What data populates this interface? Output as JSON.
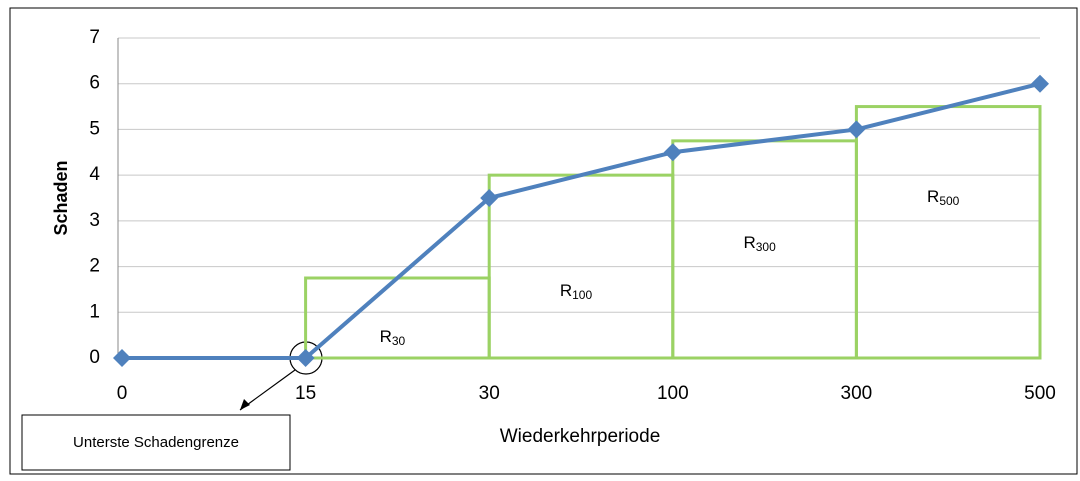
{
  "chart_data": {
    "type": "line",
    "categories": [
      "0",
      "15",
      "30",
      "100",
      "300",
      "500"
    ],
    "series": [
      {
        "name": "Schaden",
        "color": "#4f81bd",
        "values": [
          0,
          0,
          3.5,
          4.5,
          5,
          6
        ]
      }
    ],
    "rectangles": [
      {
        "label": "R",
        "subscript": "30",
        "value": 1.75
      },
      {
        "label": "R",
        "subscript": "100",
        "value": 4
      },
      {
        "label": "R",
        "subscript": "300",
        "value": 4.75
      },
      {
        "label": "R",
        "subscript": "500",
        "value": 5.5
      }
    ],
    "rectangle_color": "#9bd264",
    "ylim": [
      0,
      7
    ],
    "yticks": [
      0,
      1,
      2,
      3,
      4,
      5,
      6,
      7
    ],
    "grid": true,
    "y_label": "Schaden",
    "x_label": "Wiederkehrperiode",
    "annotation": "Unterste Schadengrenze"
  }
}
